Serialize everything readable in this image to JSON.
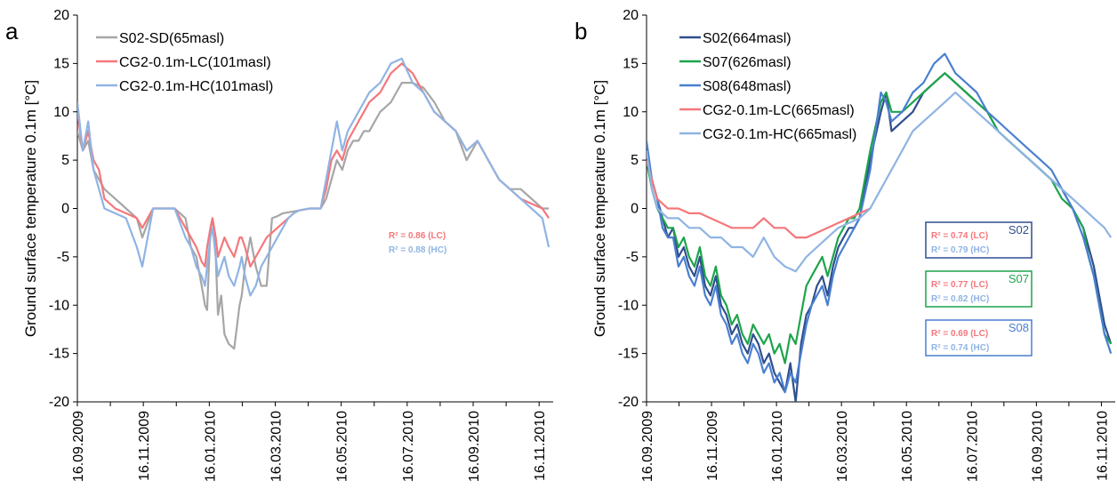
{
  "colors": {
    "S02-SD": "#a6a6a6",
    "LC": "#f4777b",
    "HC": "#8fb4e3",
    "S02": "#2f4f8f",
    "S07": "#1ea44b",
    "S08": "#4a7fd0",
    "box_S02": "#2f4f8f",
    "box_S07": "#1ea44b",
    "box_S08": "#4a7fd0",
    "r2_LC": "#f4777b",
    "r2_HC": "#8fb4e3"
  },
  "chart_data": [
    {
      "type": "line",
      "panel": "a",
      "ylabel": "Ground surface temperature 0.1m [°C]",
      "xlabel": "",
      "ylim": [
        -20,
        20
      ],
      "yticks": [
        "-20",
        "-15",
        "-10",
        "-5",
        "0",
        "5",
        "10",
        "15",
        "20"
      ],
      "xlim_days": [
        0,
        440
      ],
      "xtick_labels": [
        "16.09.2009",
        "16.11.2009",
        "16.01.2010",
        "16.03.2010",
        "16.05.2010",
        "16.07.2010",
        "16.09.2010",
        "16.11.2010"
      ],
      "x_unit": "days since 16.09.2009",
      "legend_position": "top-left",
      "series": [
        {
          "name": "S02-SD(65masl)",
          "color_key": "S02-SD",
          "x": [
            0,
            5,
            10,
            15,
            20,
            25,
            35,
            45,
            55,
            60,
            70,
            80,
            90,
            100,
            105,
            110,
            115,
            118,
            120,
            123,
            125,
            128,
            130,
            133,
            136,
            140,
            145,
            150,
            152,
            155,
            160,
            165,
            170,
            175,
            180,
            185,
            190,
            195,
            200,
            205,
            210,
            215,
            220,
            225,
            230,
            235,
            240,
            245,
            250,
            255,
            260,
            265,
            270,
            280,
            290,
            300,
            310,
            320,
            330,
            340,
            350,
            360,
            370,
            380,
            390,
            400,
            410,
            420,
            430,
            436
          ],
          "y": [
            8,
            6,
            7,
            4,
            3,
            2,
            1,
            0,
            -1,
            -3,
            0,
            0,
            0,
            -1,
            -4,
            -5,
            -8,
            -10,
            -10.5,
            -2,
            -1,
            -5,
            -11,
            -9,
            -13,
            -14,
            -14.5,
            -10,
            -9,
            -6,
            -3,
            -6,
            -8,
            -8,
            -1,
            -0.8,
            -0.5,
            -0.4,
            -0.3,
            -0.2,
            -0.1,
            0,
            0,
            0,
            1,
            3,
            5,
            4,
            6,
            7,
            7,
            8,
            8,
            10,
            11,
            13,
            13,
            12.5,
            11,
            9,
            8,
            5,
            7,
            5,
            3,
            2,
            2,
            1,
            0,
            0
          ]
        },
        {
          "name": "CG2-0.1m-LC(101masl)",
          "color_key": "LC",
          "x": [
            0,
            5,
            10,
            15,
            20,
            25,
            35,
            45,
            55,
            60,
            70,
            80,
            90,
            100,
            105,
            110,
            115,
            118,
            120,
            123,
            125,
            128,
            130,
            133,
            136,
            140,
            145,
            150,
            152,
            155,
            160,
            165,
            170,
            175,
            180,
            185,
            190,
            195,
            200,
            205,
            210,
            215,
            220,
            225,
            230,
            235,
            240,
            245,
            250,
            255,
            260,
            265,
            270,
            280,
            290,
            300,
            310,
            320,
            330,
            340,
            350,
            360,
            370,
            380,
            390,
            400,
            410,
            420,
            430,
            436
          ],
          "y": [
            10,
            6,
            8,
            5,
            4,
            1,
            0,
            -0.5,
            -1,
            -2,
            0,
            0,
            0,
            -2,
            -3,
            -4,
            -5.5,
            -6,
            -4,
            -2,
            -1,
            -3,
            -5,
            -4,
            -3,
            -4,
            -5,
            -3,
            -3,
            -4,
            -6,
            -5,
            -4,
            -3,
            -2.5,
            -2,
            -1.5,
            -1,
            -0.5,
            -0.2,
            -0.1,
            0,
            0,
            0,
            2,
            5,
            6,
            5,
            7,
            8,
            9,
            10,
            11,
            12,
            14,
            15,
            14,
            12,
            10,
            9,
            8,
            6,
            7,
            5,
            3,
            2,
            1,
            0.5,
            0,
            -1
          ]
        },
        {
          "name": "CG2-0.1m-HC(101masl)",
          "color_key": "HC",
          "x": [
            0,
            5,
            10,
            15,
            20,
            25,
            35,
            45,
            55,
            60,
            70,
            80,
            90,
            100,
            105,
            110,
            115,
            118,
            120,
            123,
            125,
            128,
            130,
            133,
            136,
            140,
            145,
            150,
            152,
            155,
            160,
            165,
            170,
            175,
            180,
            185,
            190,
            195,
            200,
            205,
            210,
            215,
            220,
            225,
            230,
            235,
            240,
            245,
            250,
            255,
            260,
            265,
            270,
            280,
            290,
            300,
            310,
            320,
            330,
            340,
            350,
            360,
            370,
            380,
            390,
            400,
            410,
            420,
            430,
            436
          ],
          "y": [
            11,
            6,
            9,
            4,
            2,
            0,
            -0.5,
            -1,
            -4,
            -6,
            0,
            0,
            0,
            -3,
            -4,
            -6,
            -7,
            -8,
            -6,
            -3,
            -2,
            -5,
            -7,
            -6,
            -5,
            -7,
            -8,
            -6,
            -5,
            -7,
            -9,
            -8,
            -6,
            -5,
            -4,
            -3,
            -2,
            -1,
            -0.5,
            -0.2,
            -0.1,
            0,
            0,
            0,
            3,
            6,
            9,
            6,
            8,
            9,
            10,
            11,
            12,
            13,
            15,
            15.5,
            13,
            12,
            10,
            9,
            8,
            6,
            7,
            5,
            3,
            2,
            1,
            0,
            -1,
            -4
          ]
        }
      ],
      "annotations": {
        "r2_lc": "R² = 0.86 (LC)",
        "r2_hc": "R² = 0.88 (HC)"
      }
    },
    {
      "type": "line",
      "panel": "b",
      "ylabel": "Ground surface temperature 0.1m [°C]",
      "xlabel": "",
      "ylim": [
        -20,
        20
      ],
      "yticks": [
        "-20",
        "-15",
        "-10",
        "-5",
        "0",
        "5",
        "10",
        "15",
        "20"
      ],
      "xlim_days": [
        0,
        440
      ],
      "xtick_labels": [
        "16.09.2009",
        "16.11.2009",
        "16.01.2010",
        "16.03.2010",
        "16.05.2010",
        "16.07.2010",
        "16.09.2010",
        "16.11.2010"
      ],
      "x_unit": "days since 16.09.2009",
      "legend_position": "top-left",
      "series": [
        {
          "name": "S02(664masl)",
          "color_key": "S02",
          "x": [
            0,
            5,
            10,
            15,
            20,
            25,
            30,
            35,
            40,
            45,
            50,
            55,
            60,
            65,
            70,
            75,
            80,
            85,
            90,
            95,
            100,
            105,
            110,
            115,
            120,
            125,
            130,
            135,
            140,
            145,
            150,
            155,
            160,
            165,
            170,
            175,
            180,
            185,
            190,
            195,
            200,
            210,
            220,
            225,
            230,
            240,
            250,
            260,
            270,
            280,
            290,
            300,
            310,
            320,
            330,
            340,
            350,
            360,
            370,
            380,
            390,
            400,
            410,
            415,
            420,
            425,
            430,
            436
          ],
          "y": [
            6,
            3,
            1,
            -1,
            -3,
            -2,
            -5,
            -4,
            -6,
            -7,
            -5,
            -8,
            -9,
            -7,
            -10,
            -11,
            -13,
            -12,
            -14,
            -15,
            -13,
            -14,
            -16,
            -15,
            -17,
            -18,
            -19,
            -16,
            -20,
            -14,
            -11,
            -10,
            -8,
            -7,
            -9,
            -6,
            -4,
            -3,
            -2,
            -2,
            -1,
            5,
            10,
            12,
            8,
            9,
            10,
            12,
            13,
            14,
            13,
            12,
            11,
            10,
            8,
            7,
            6,
            5,
            4,
            3,
            2,
            0,
            -2,
            -4,
            -6,
            -9,
            -12,
            -14
          ]
        },
        {
          "name": "S07(626masl)",
          "color_key": "S07",
          "x": [
            0,
            5,
            10,
            15,
            20,
            25,
            30,
            35,
            40,
            45,
            50,
            55,
            60,
            65,
            70,
            75,
            80,
            85,
            90,
            95,
            100,
            105,
            110,
            115,
            120,
            125,
            130,
            135,
            140,
            145,
            150,
            155,
            160,
            165,
            170,
            175,
            180,
            185,
            190,
            195,
            200,
            210,
            220,
            225,
            230,
            240,
            250,
            260,
            270,
            280,
            290,
            300,
            310,
            320,
            330,
            340,
            350,
            360,
            370,
            380,
            390,
            400,
            410,
            415,
            420,
            425,
            430,
            436
          ],
          "y": [
            5,
            2,
            0,
            -1,
            -2,
            -2,
            -4,
            -3,
            -5,
            -6,
            -4,
            -7,
            -8,
            -6,
            -9,
            -10,
            -12,
            -11,
            -13,
            -14,
            -12,
            -13,
            -14,
            -13,
            -15,
            -14,
            -16,
            -13,
            -14,
            -11,
            -8,
            -7,
            -6,
            -5,
            -7,
            -5,
            -3,
            -2,
            -1,
            -1,
            0,
            6,
            11,
            12,
            10,
            10,
            11,
            12,
            13,
            14,
            13,
            12,
            11,
            10,
            8,
            7,
            6,
            5,
            4,
            3,
            1,
            0,
            -2,
            -5,
            -7,
            -10,
            -13,
            -14
          ]
        },
        {
          "name": "S08(648masl)",
          "color_key": "S08",
          "x": [
            0,
            5,
            10,
            15,
            20,
            25,
            30,
            35,
            40,
            45,
            50,
            55,
            60,
            65,
            70,
            75,
            80,
            85,
            90,
            95,
            100,
            105,
            110,
            115,
            120,
            125,
            130,
            135,
            140,
            145,
            150,
            155,
            160,
            165,
            170,
            175,
            180,
            185,
            190,
            195,
            200,
            210,
            220,
            225,
            230,
            240,
            250,
            260,
            270,
            280,
            290,
            300,
            310,
            320,
            330,
            340,
            350,
            360,
            370,
            380,
            390,
            400,
            410,
            415,
            420,
            425,
            430,
            436
          ],
          "y": [
            7,
            3,
            1,
            -2,
            -3,
            -3,
            -6,
            -5,
            -7,
            -8,
            -6,
            -9,
            -10,
            -8,
            -11,
            -12,
            -14,
            -13,
            -15,
            -16,
            -14,
            -15,
            -17,
            -16,
            -18,
            -17,
            -19,
            -17,
            -18,
            -15,
            -12,
            -10,
            -9,
            -8,
            -10,
            -7,
            -5,
            -4,
            -3,
            -2,
            -1,
            4,
            12,
            11,
            9,
            10,
            12,
            13,
            15,
            16,
            14,
            13,
            12,
            10,
            9,
            8,
            7,
            6,
            5,
            4,
            2,
            0,
            -3,
            -5,
            -7,
            -10,
            -13,
            -15
          ]
        },
        {
          "name": "CG2-0.1m-LC(665masl)",
          "color_key": "LC",
          "x": [
            0,
            10,
            20,
            30,
            40,
            50,
            60,
            70,
            80,
            90,
            100,
            110,
            120,
            130,
            140,
            150,
            160,
            170,
            180,
            190,
            200,
            210
          ],
          "y": [
            5,
            1,
            0,
            0,
            -0.5,
            -0.5,
            -1,
            -1.5,
            -2,
            -2,
            -2,
            -1,
            -2,
            -2,
            -3,
            -3,
            -2.5,
            -2,
            -1.5,
            -1,
            -0.5,
            0
          ]
        },
        {
          "name": "CG2-0.1m-HC(665masl)",
          "color_key": "HC",
          "x": [
            0,
            5,
            10,
            20,
            30,
            40,
            50,
            60,
            70,
            80,
            90,
            100,
            110,
            120,
            130,
            140,
            150,
            160,
            170,
            180,
            190,
            200,
            210,
            220,
            230,
            240,
            250,
            260,
            270,
            280,
            290,
            300,
            310,
            320,
            330,
            340,
            350,
            360,
            370,
            380,
            390,
            400,
            410,
            420,
            430,
            436
          ],
          "y": [
            6,
            2,
            0,
            -1,
            -1,
            -2,
            -2,
            -3,
            -3,
            -4,
            -4,
            -5,
            -3,
            -5,
            -6,
            -6.5,
            -5,
            -4,
            -3,
            -2,
            -1.5,
            -1,
            0,
            2,
            4,
            6,
            8,
            9,
            10,
            11,
            12,
            11,
            10,
            9,
            8,
            7,
            6,
            5,
            4,
            3,
            2,
            1,
            0,
            -1,
            -2,
            -3
          ]
        }
      ],
      "annotations": {
        "boxes": [
          {
            "station": "S02",
            "r2_lc": "R² = 0.74 (LC)",
            "r2_hc": "R² = 0.79 (HC)",
            "color_key": "box_S02"
          },
          {
            "station": "S07",
            "r2_lc": "R² = 0.77 (LC)",
            "r2_hc": "R² = 0.82 (HC)",
            "color_key": "box_S07"
          },
          {
            "station": "S08",
            "r2_lc": "R² = 0.69 (LC)",
            "r2_hc": "R² = 0.74 (HC)",
            "color_key": "box_S08"
          }
        ]
      }
    }
  ]
}
